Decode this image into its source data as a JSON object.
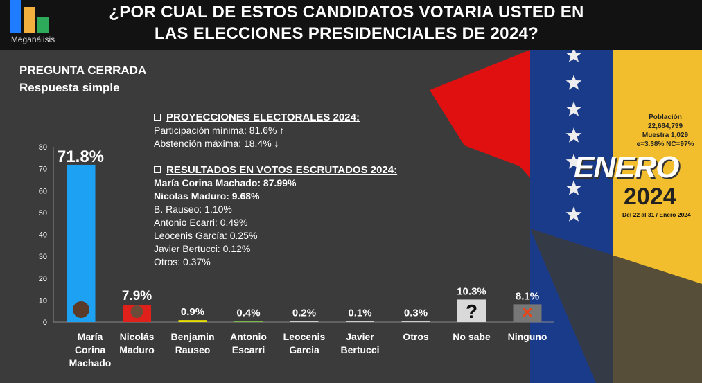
{
  "header": {
    "logo_text": "Meganálisis",
    "title_line1": "¿POR CUAL DE ESTOS CANDIDATOS VOTARIA USTED EN",
    "title_line2": "LAS ELECCIONES PRESIDENCIALES DE 2024?"
  },
  "question": {
    "type": "PREGUNTA  CERRADA",
    "response": "Respuesta simple"
  },
  "projections": {
    "heading": "PROYECCIONES ELECTORALES 2024:",
    "lines": [
      "Participación mínima: 81.6% ↑",
      "Abstención máxima: 18.4% ↓"
    ]
  },
  "results": {
    "heading": "RESULTADOS EN VOTOS ESCRUTADOS 2024:",
    "bold_lines": [
      "María Corina Machado: 87.99%",
      "Nicolas Maduro: 9.68%"
    ],
    "lines": [
      "B. Rauseo: 1.10%",
      "Antonio Ecarri: 0.49%",
      "Leocenis García: 0.25%",
      "Javier Bertucci: 0.12%",
      "Otros: 0.37%"
    ]
  },
  "survey": {
    "l1": "Población",
    "l2": "22,684,799",
    "l3": "Muestra 1,029",
    "l4": "e=3.38%  NC=97%",
    "month": "ENERO",
    "year": "2024",
    "dates": "Del 22 al 31 / Enero 2024"
  },
  "chart_data": {
    "type": "bar",
    "title": "¿POR CUAL DE ESTOS CANDIDATOS VOTARIA USTED EN LAS ELECCIONES PRESIDENCIALES DE 2024?",
    "categories": [
      [
        "María",
        "Corina",
        "Machado"
      ],
      [
        "Nicolás",
        "Maduro"
      ],
      [
        "Benjamin",
        "Rauseo"
      ],
      [
        "Antonio",
        "Escarri"
      ],
      [
        "Leocenis",
        "Garcia"
      ],
      [
        "Javier",
        "Bertucci"
      ],
      [
        "Otros"
      ],
      [
        "No sabe"
      ],
      [
        "Ninguno"
      ]
    ],
    "values": [
      71.8,
      7.9,
      0.9,
      0.4,
      0.2,
      0.1,
      0.3,
      10.3,
      8.1
    ],
    "labels": [
      "71.8%",
      "7.9%",
      "0.9%",
      "0.4%",
      "0.2%",
      "0.1%",
      "0.3%",
      "10.3%",
      "8.1%"
    ],
    "colors": [
      "#1da1f2",
      "#e0201a",
      "#e8e000",
      "#7ab648",
      "#cccccc",
      "#cccccc",
      "#cccccc",
      "#d9d9d9",
      "#777777"
    ],
    "bar_symbols": [
      "",
      "",
      "",
      "",
      "",
      "",
      "",
      "?",
      "✕"
    ],
    "yticks": [
      0,
      10,
      20,
      30,
      40,
      50,
      60,
      70,
      80
    ],
    "ylim": [
      0,
      80
    ],
    "xlabel": "",
    "ylabel": "",
    "grid": false
  }
}
